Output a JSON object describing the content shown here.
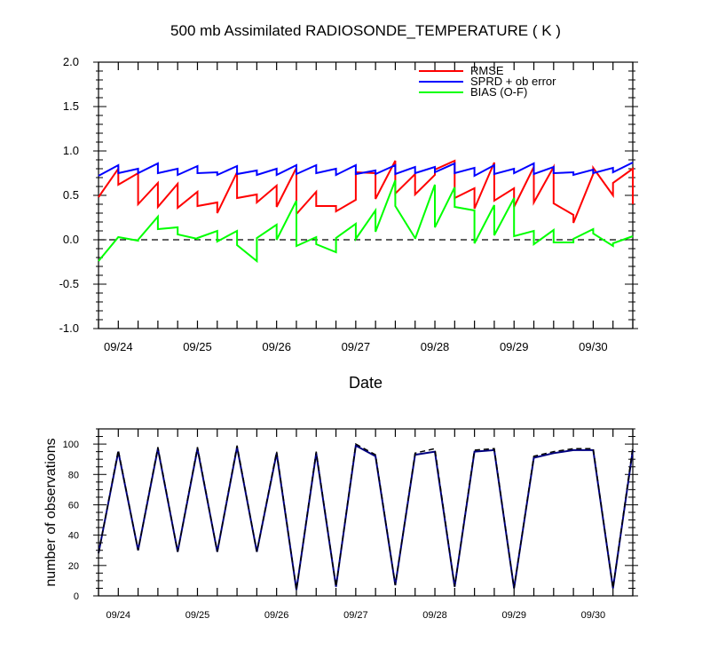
{
  "title": "500 mb Assimilated RADIOSONDE_TEMPERATURE ( K )",
  "xlabel": "Date",
  "chart_data": [
    {
      "type": "line",
      "title": "500 mb Assimilated RADIOSONDE_TEMPERATURE ( K )",
      "xlabel": "Date",
      "ylabel": "",
      "xlim": [
        0,
        27
      ],
      "ylim": [
        -1.0,
        2.0
      ],
      "yticks": [
        -1.0,
        -0.5,
        0.0,
        0.5,
        1.0,
        1.5,
        2.0
      ],
      "ytick_labels": [
        "-1.0",
        "-0.5",
        "0.0",
        "0.5",
        "1.0",
        "1.5",
        "2.0"
      ],
      "xticks": [
        1,
        5,
        9,
        13,
        17,
        21,
        25
      ],
      "xtick_labels": [
        "09/24",
        "09/25",
        "09/26",
        "09/27",
        "09/28",
        "09/29",
        "09/30"
      ],
      "zero_line": "dashed",
      "legend_position": "top-right",
      "series": [
        {
          "name": "RMSE",
          "color": "#ff0000",
          "x": [
            0,
            1,
            1,
            2,
            2,
            3,
            3,
            4,
            4,
            5,
            5,
            6,
            6,
            7,
            7,
            8,
            8,
            9,
            9,
            10,
            10,
            11,
            11,
            12,
            12,
            13,
            13,
            14,
            14,
            15,
            15,
            16,
            16,
            17,
            17,
            18,
            18,
            19,
            19,
            20,
            20,
            21,
            21,
            22,
            22,
            23,
            23,
            24,
            24,
            25,
            25,
            26,
            26,
            27,
            27
          ],
          "values": [
            0.48,
            0.8,
            0.62,
            0.75,
            0.4,
            0.64,
            0.37,
            0.63,
            0.36,
            0.54,
            0.38,
            0.42,
            0.3,
            0.76,
            0.47,
            0.51,
            0.42,
            0.61,
            0.37,
            0.81,
            0.29,
            0.54,
            0.38,
            0.38,
            0.32,
            0.45,
            0.76,
            0.75,
            0.46,
            0.89,
            0.52,
            0.74,
            0.51,
            0.73,
            0.79,
            0.89,
            0.47,
            0.58,
            0.35,
            0.87,
            0.44,
            0.58,
            0.37,
            0.82,
            0.42,
            0.82,
            0.41,
            0.28,
            0.19,
            0.74,
            0.81,
            0.5,
            0.64,
            0.8,
            0.4
          ]
        },
        {
          "name": "SPRD + ob error",
          "color": "#0000ff",
          "x": [
            0,
            1,
            1,
            2,
            2,
            3,
            3,
            4,
            4,
            5,
            5,
            6,
            6,
            7,
            7,
            8,
            8,
            9,
            9,
            10,
            10,
            11,
            11,
            12,
            12,
            13,
            13,
            14,
            14,
            15,
            15,
            16,
            16,
            17,
            17,
            18,
            18,
            19,
            19,
            20,
            20,
            21,
            21,
            22,
            22,
            23,
            23,
            24,
            24,
            25,
            25,
            26,
            26,
            27
          ],
          "values": [
            0.72,
            0.84,
            0.75,
            0.8,
            0.75,
            0.86,
            0.75,
            0.8,
            0.73,
            0.83,
            0.75,
            0.76,
            0.73,
            0.83,
            0.74,
            0.78,
            0.73,
            0.8,
            0.73,
            0.84,
            0.74,
            0.84,
            0.75,
            0.8,
            0.73,
            0.84,
            0.74,
            0.78,
            0.74,
            0.84,
            0.74,
            0.82,
            0.75,
            0.82,
            0.76,
            0.86,
            0.75,
            0.81,
            0.72,
            0.84,
            0.74,
            0.8,
            0.75,
            0.86,
            0.74,
            0.82,
            0.75,
            0.76,
            0.73,
            0.79,
            0.75,
            0.81,
            0.76,
            0.87
          ]
        },
        {
          "name": "BIAS (O-F)",
          "color": "#00ff00",
          "x": [
            0,
            1,
            1,
            2,
            2,
            3,
            3,
            4,
            4,
            5,
            5,
            6,
            6,
            7,
            7,
            8,
            8,
            9,
            9,
            10,
            10,
            11,
            11,
            12,
            12,
            13,
            13,
            14,
            14,
            15,
            15,
            16,
            16,
            17,
            17,
            18,
            18,
            19,
            19,
            20,
            20,
            21,
            21,
            22,
            22,
            23,
            23,
            24,
            24,
            25,
            25,
            26,
            26,
            27
          ],
          "values": [
            -0.24,
            0.03,
            0.03,
            -0.01,
            0.0,
            0.26,
            0.12,
            0.14,
            0.06,
            0.01,
            0.02,
            0.1,
            -0.02,
            0.1,
            -0.06,
            -0.24,
            0.02,
            0.17,
            0.0,
            0.44,
            -0.07,
            0.03,
            -0.05,
            -0.14,
            0.02,
            0.18,
            0.01,
            0.33,
            0.09,
            0.67,
            0.38,
            0.02,
            0.01,
            0.62,
            0.14,
            0.59,
            0.37,
            0.33,
            -0.04,
            0.39,
            0.05,
            0.47,
            0.04,
            0.1,
            -0.05,
            0.11,
            -0.03,
            -0.03,
            0.01,
            0.12,
            0.07,
            -0.07,
            -0.04,
            0.04
          ]
        }
      ]
    },
    {
      "type": "line",
      "ylabel": "number of observations",
      "xlim": [
        0,
        27
      ],
      "ylim": [
        0,
        110
      ],
      "yticks": [
        0,
        20,
        40,
        60,
        80,
        100
      ],
      "ytick_labels": [
        "0",
        "20",
        "40",
        "60",
        "80",
        "100"
      ],
      "xticks": [
        1,
        5,
        9,
        13,
        17,
        21,
        25
      ],
      "xtick_labels": [
        "09/24",
        "09/25",
        "09/26",
        "09/27",
        "09/28",
        "09/29",
        "09/30"
      ],
      "series": [
        {
          "color": "#000080",
          "style": "solid",
          "x": [
            0,
            1,
            2,
            3,
            4,
            5,
            6,
            7,
            8,
            9,
            10,
            11,
            12,
            13,
            14,
            15,
            16,
            17,
            18,
            19,
            20,
            21,
            22,
            23,
            24,
            25,
            26,
            27
          ],
          "values": [
            28,
            95,
            30,
            97,
            29,
            97,
            29,
            98,
            29,
            94,
            4,
            94,
            6,
            99,
            92,
            7,
            93,
            95,
            6,
            95,
            96,
            5,
            91,
            94,
            96,
            96,
            5,
            96
          ]
        },
        {
          "color": "#000000",
          "style": "dashed",
          "x": [
            0,
            1,
            2,
            3,
            4,
            5,
            6,
            7,
            8,
            9,
            10,
            11,
            12,
            13,
            14,
            15,
            16,
            17,
            18,
            19,
            20,
            21,
            22,
            23,
            24,
            25,
            26,
            27
          ],
          "values": [
            28,
            96,
            30,
            98,
            29,
            98,
            29,
            99,
            29,
            95,
            4,
            95,
            6,
            100,
            93,
            7,
            94,
            97,
            6,
            96,
            97,
            5,
            92,
            95,
            97,
            97,
            5,
            98
          ]
        }
      ]
    }
  ]
}
